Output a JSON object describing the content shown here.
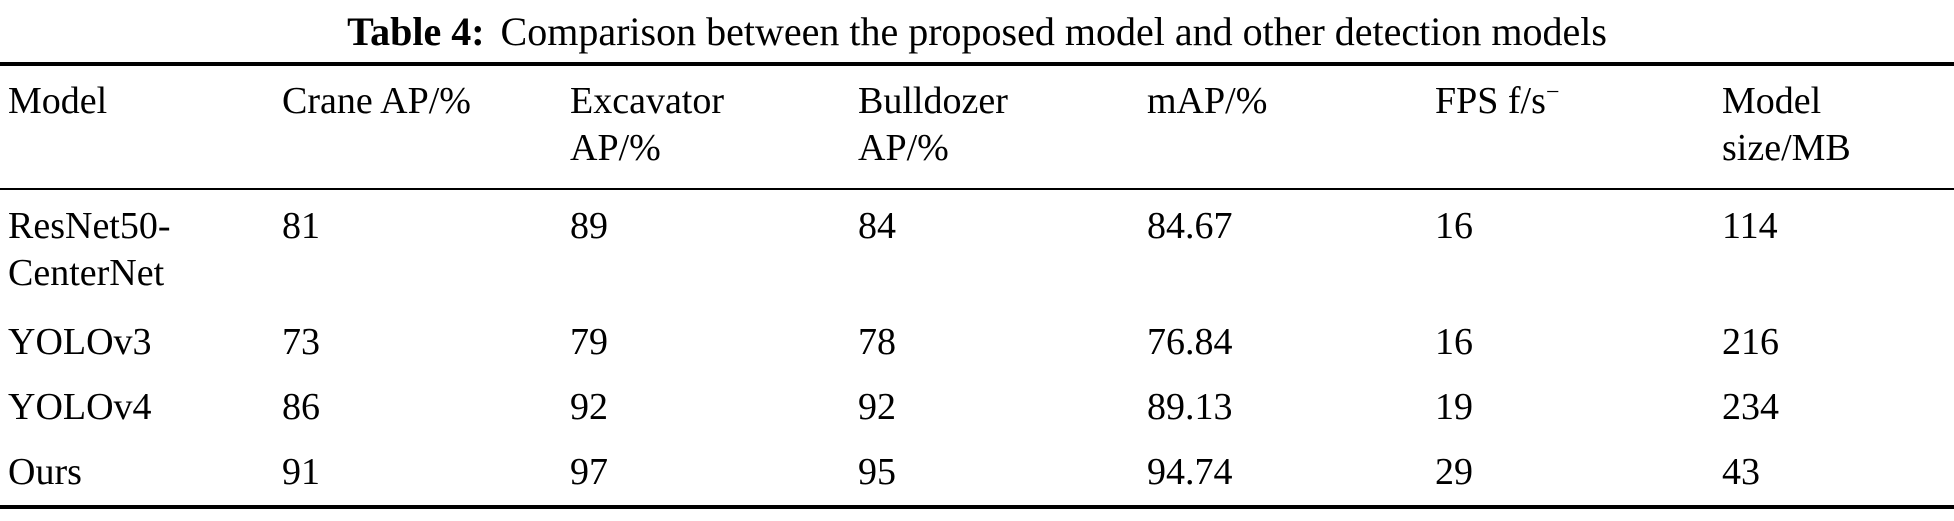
{
  "caption": {
    "label": "Table 4:",
    "text": "Comparison between the proposed model and other detection models"
  },
  "table": {
    "headers": [
      {
        "line1": "Model",
        "line2": ""
      },
      {
        "line1": "Crane AP/%",
        "line2": ""
      },
      {
        "line1": "Excavator",
        "line2": "AP/%"
      },
      {
        "line1": "Bulldozer",
        "line2": "AP/%"
      },
      {
        "line1": "mAP/%",
        "line2": ""
      },
      {
        "line1": "FPS f/s",
        "sup": "−",
        "line2": ""
      },
      {
        "line1": "Model",
        "line2": "size/MB"
      }
    ],
    "rows": [
      {
        "model": "ResNet50-CenterNet",
        "crane_ap": "81",
        "excavator_ap": "89",
        "bulldozer_ap": "84",
        "map": "84.67",
        "fps": "16",
        "model_size": "114"
      },
      {
        "model": "YOLOv3",
        "crane_ap": "73",
        "excavator_ap": "79",
        "bulldozer_ap": "78",
        "map": "76.84",
        "fps": "16",
        "model_size": "216"
      },
      {
        "model": "YOLOv4",
        "crane_ap": "86",
        "excavator_ap": "92",
        "bulldozer_ap": "92",
        "map": "89.13",
        "fps": "19",
        "model_size": "234"
      },
      {
        "model": "Ours",
        "crane_ap": "91",
        "excavator_ap": "97",
        "bulldozer_ap": "95",
        "map": "94.74",
        "fps": "29",
        "model_size": "43"
      }
    ]
  }
}
